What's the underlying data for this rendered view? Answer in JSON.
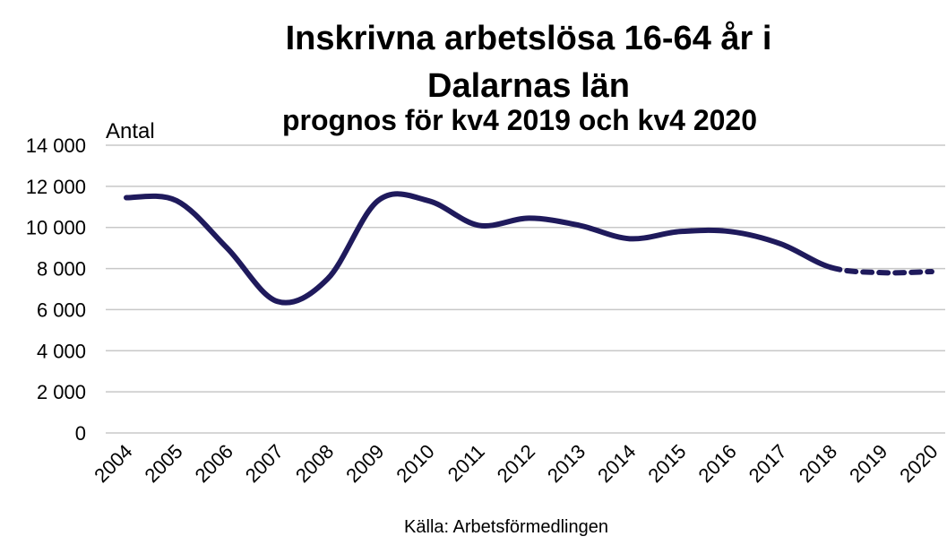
{
  "chart_data": {
    "type": "line",
    "title": [
      "Inskrivna arbetslösa 16-64 år i",
      "Dalarnas län"
    ],
    "subtitle": "prognos för kv4 2019 och kv4 2020",
    "y_label": "Antal",
    "source": "Källa: Arbetsförmedlingen",
    "categories": [
      "2004",
      "2005",
      "2006",
      "2007",
      "2008",
      "2009",
      "2010",
      "2011",
      "2012",
      "2013",
      "2014",
      "2015",
      "2016",
      "2017",
      "2018",
      "2019",
      "2020"
    ],
    "values": [
      11450,
      11300,
      9000,
      6400,
      7500,
      11300,
      11300,
      10100,
      10450,
      10100,
      9450,
      9800,
      9800,
      9200,
      8050,
      7800,
      7850
    ],
    "dashed_from": "2018",
    "color": "#1f1a5c",
    "ylim": [
      0,
      14000
    ],
    "yticks": [
      {
        "value": 0,
        "label": "0"
      },
      {
        "value": 2000,
        "label": "2 000"
      },
      {
        "value": 4000,
        "label": "4 000"
      },
      {
        "value": 6000,
        "label": "6 000"
      },
      {
        "value": 8000,
        "label": "8 000"
      },
      {
        "value": 10000,
        "label": "10 000"
      },
      {
        "value": 12000,
        "label": "12 000"
      },
      {
        "value": 14000,
        "label": "14 000"
      }
    ],
    "grid": true
  }
}
